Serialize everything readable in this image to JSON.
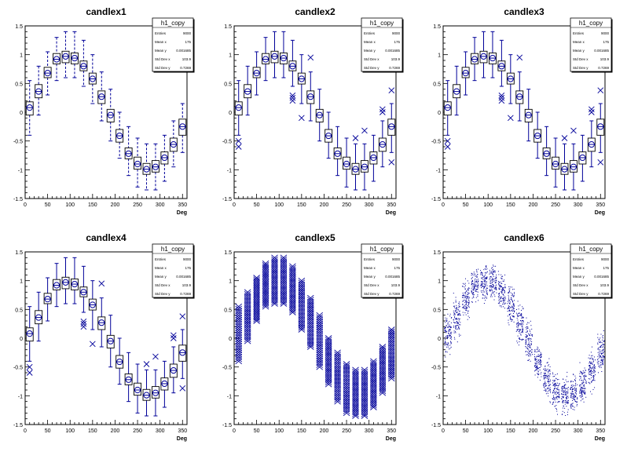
{
  "common": {
    "stats_box": {
      "title": "h1_copy",
      "rows": [
        {
          "label": "Entries",
          "value": "9000"
        },
        {
          "label": "Mean x",
          "value": "175"
        },
        {
          "label": "Mean y",
          "value": "0.001685"
        },
        {
          "label": "Std Dev x",
          "value": "103.9"
        },
        {
          "label": "Std Dev y",
          "value": "0.7269"
        }
      ]
    },
    "xlabel": "Deg",
    "xlim": [
      0,
      360
    ],
    "ylim": [
      -1.5,
      1.5
    ],
    "x_ticks": [
      "0",
      "50",
      "100",
      "150",
      "200",
      "250",
      "300",
      "350"
    ],
    "y_ticks": [
      "-1.5",
      "-1",
      "-0.5",
      "0",
      "0.5",
      "1",
      "1.5"
    ],
    "x_tick_values": [
      0,
      50,
      100,
      150,
      200,
      250,
      300,
      350
    ],
    "y_tick_values": [
      -1.5,
      -1,
      -0.5,
      0,
      0.5,
      1,
      1.5
    ],
    "color": "#000099"
  },
  "chart_data": [
    {
      "type": "candle",
      "title": "candlex1",
      "style": "dashed-whiskers"
    },
    {
      "type": "candle",
      "title": "candlex2",
      "style": "box-outliers"
    },
    {
      "type": "candle",
      "title": "candlex3",
      "style": "box-outliers"
    },
    {
      "type": "candle",
      "title": "candlex4",
      "style": "box-outliers-noaxis"
    },
    {
      "type": "candle",
      "title": "candlex5",
      "style": "all-points"
    },
    {
      "type": "candle",
      "title": "candlex6",
      "style": "scatter-points"
    }
  ],
  "bins": {
    "x": [
      10,
      30,
      50,
      70,
      90,
      110,
      130,
      150,
      170,
      190,
      210,
      230,
      250,
      270,
      290,
      310,
      330,
      350
    ],
    "median": [
      0.08,
      0.36,
      0.68,
      0.92,
      0.97,
      0.94,
      0.8,
      0.58,
      0.27,
      -0.05,
      -0.41,
      -0.72,
      -0.9,
      -0.99,
      -0.95,
      -0.79,
      -0.56,
      -0.25
    ],
    "q1": [
      -0.05,
      0.25,
      0.6,
      0.84,
      0.86,
      0.84,
      0.72,
      0.49,
      0.15,
      -0.17,
      -0.52,
      -0.81,
      -0.99,
      -1.08,
      -1.04,
      -0.9,
      -0.68,
      -0.4
    ],
    "q3": [
      0.18,
      0.48,
      0.78,
      1.02,
      1.06,
      1.03,
      0.89,
      0.68,
      0.37,
      0.05,
      -0.3,
      -0.62,
      -0.78,
      -0.89,
      -0.84,
      -0.69,
      -0.45,
      -0.12
    ],
    "wlo": [
      -0.4,
      -0.05,
      0.3,
      0.55,
      0.6,
      0.6,
      0.45,
      0.15,
      -0.15,
      -0.5,
      -0.8,
      -1.1,
      -1.3,
      -1.35,
      -1.35,
      -1.2,
      -0.95,
      -0.7
    ],
    "whi": [
      0.55,
      0.8,
      1.05,
      1.3,
      1.4,
      1.4,
      1.25,
      1.0,
      0.7,
      0.4,
      0.0,
      -0.25,
      -0.45,
      -0.55,
      -0.55,
      -0.4,
      -0.15,
      0.15
    ]
  }
}
